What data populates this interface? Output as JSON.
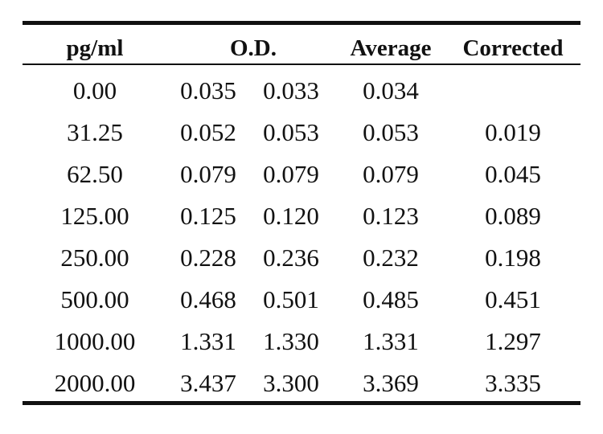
{
  "table": {
    "headers": {
      "concentration": "pg/ml",
      "od": "O.D.",
      "average": "Average",
      "corrected": "Corrected"
    },
    "rows": [
      {
        "concentration": "0.00",
        "od1": "0.035",
        "od2": "0.033",
        "average": "0.034",
        "corrected": ""
      },
      {
        "concentration": "31.25",
        "od1": "0.052",
        "od2": "0.053",
        "average": "0.053",
        "corrected": "0.019"
      },
      {
        "concentration": "62.50",
        "od1": "0.079",
        "od2": "0.079",
        "average": "0.079",
        "corrected": "0.045"
      },
      {
        "concentration": "125.00",
        "od1": "0.125",
        "od2": "0.120",
        "average": "0.123",
        "corrected": "0.089"
      },
      {
        "concentration": "250.00",
        "od1": "0.228",
        "od2": "0.236",
        "average": "0.232",
        "corrected": "0.198"
      },
      {
        "concentration": "500.00",
        "od1": "0.468",
        "od2": "0.501",
        "average": "0.485",
        "corrected": "0.451"
      },
      {
        "concentration": "1000.00",
        "od1": "1.331",
        "od2": "1.330",
        "average": "1.331",
        "corrected": "1.297"
      },
      {
        "concentration": "2000.00",
        "od1": "3.437",
        "od2": "3.300",
        "average": "3.369",
        "corrected": "3.335"
      }
    ]
  }
}
